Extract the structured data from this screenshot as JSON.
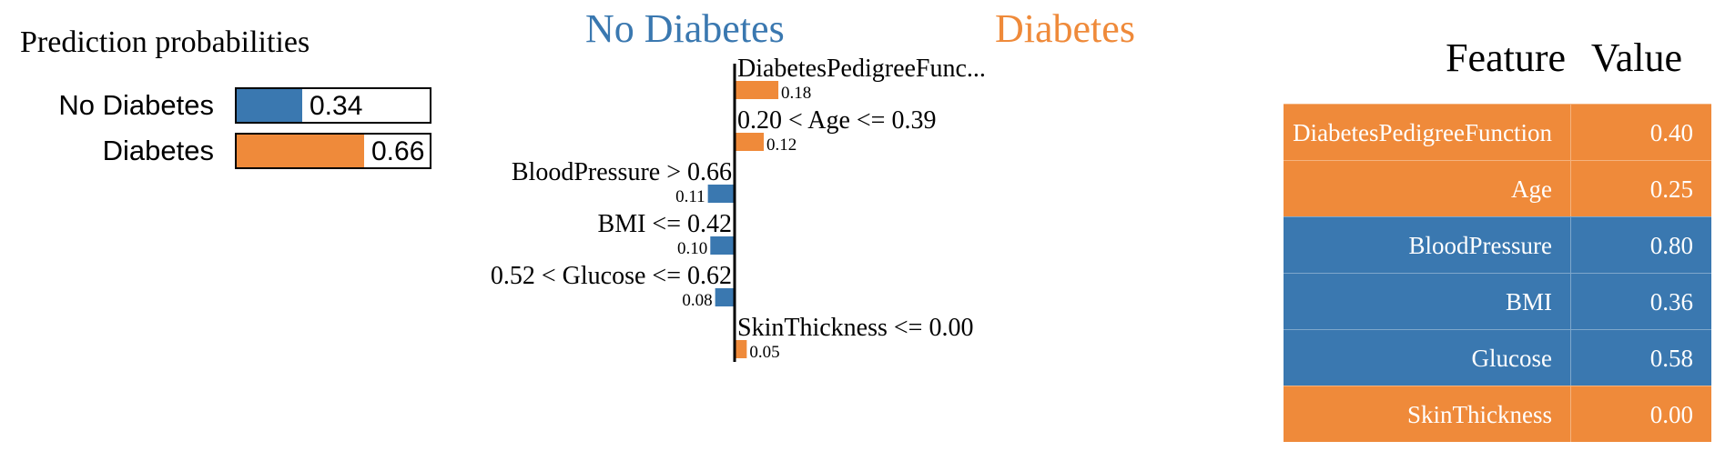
{
  "colors": {
    "no_diabetes": "#3a78b0",
    "diabetes": "#ef8a3a"
  },
  "probabilities": {
    "title": "Prediction probabilities",
    "items": [
      {
        "label": "No Diabetes",
        "value": 0.34,
        "value_text": "0.34",
        "color": "#3a78b0"
      },
      {
        "label": "Diabetes",
        "value": 0.66,
        "value_text": "0.66",
        "color": "#ef8a3a"
      }
    ]
  },
  "chart_data": {
    "type": "bar",
    "orientation": "horizontal",
    "class_negative": "No Diabetes",
    "class_positive": "Diabetes",
    "features": [
      {
        "label": "DiabetesPedigreeFunc...",
        "weight": 0.18,
        "weight_text": "0.18",
        "direction": "positive"
      },
      {
        "label": "0.20 < Age <= 0.39",
        "weight": 0.12,
        "weight_text": "0.12",
        "direction": "positive"
      },
      {
        "label": "BloodPressure > 0.66",
        "weight": 0.11,
        "weight_text": "0.11",
        "direction": "negative"
      },
      {
        "label": "BMI <= 0.42",
        "weight": 0.1,
        "weight_text": "0.10",
        "direction": "negative"
      },
      {
        "label": "0.52 < Glucose <= 0.62",
        "weight": 0.08,
        "weight_text": "0.08",
        "direction": "negative"
      },
      {
        "label": "SkinThickness <= 0.00",
        "weight": 0.05,
        "weight_text": "0.05",
        "direction": "positive"
      }
    ]
  },
  "table": {
    "header_feature": "Feature",
    "header_value": "Value",
    "rows": [
      {
        "feature": "DiabetesPedigreeFunction",
        "value": "0.40",
        "color": "#ef8a3a"
      },
      {
        "feature": "Age",
        "value": "0.25",
        "color": "#ef8a3a"
      },
      {
        "feature": "BloodPressure",
        "value": "0.80",
        "color": "#3a78b0"
      },
      {
        "feature": "BMI",
        "value": "0.36",
        "color": "#3a78b0"
      },
      {
        "feature": "Glucose",
        "value": "0.58",
        "color": "#3a78b0"
      },
      {
        "feature": "SkinThickness",
        "value": "0.00",
        "color": "#ef8a3a"
      }
    ]
  }
}
